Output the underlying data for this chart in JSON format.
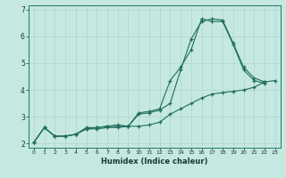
{
  "xlabel": "Humidex (Indice chaleur)",
  "background_color": "#c5e8e0",
  "grid_color": "#b0d5cc",
  "line_color": "#1e6e5e",
  "xlim": [
    -0.5,
    23.5
  ],
  "ylim": [
    1.85,
    7.15
  ],
  "yticks": [
    2,
    3,
    4,
    5,
    6,
    7
  ],
  "xticks": [
    0,
    1,
    2,
    3,
    4,
    5,
    6,
    7,
    8,
    9,
    10,
    11,
    12,
    13,
    14,
    15,
    16,
    17,
    18,
    19,
    20,
    21,
    22,
    23
  ],
  "line1_x": [
    0,
    1,
    2,
    3,
    4,
    5,
    6,
    7,
    8,
    9,
    10,
    11,
    12,
    13,
    14,
    15,
    16,
    17,
    18,
    19,
    20,
    21,
    22
  ],
  "line1_y": [
    2.05,
    2.6,
    2.28,
    2.28,
    2.35,
    2.6,
    2.6,
    2.65,
    2.65,
    2.65,
    3.1,
    3.15,
    3.25,
    3.5,
    4.75,
    5.9,
    6.55,
    6.65,
    6.6,
    5.75,
    4.85,
    4.45,
    4.3
  ],
  "line2_x": [
    0,
    1,
    2,
    3,
    4,
    5,
    6,
    7,
    8,
    9,
    10,
    11,
    12,
    13,
    14,
    15,
    16,
    17,
    18,
    19,
    20,
    21,
    22
  ],
  "line2_y": [
    2.05,
    2.6,
    2.28,
    2.28,
    2.35,
    2.55,
    2.55,
    2.6,
    2.6,
    2.65,
    3.15,
    3.2,
    3.3,
    4.35,
    4.85,
    5.5,
    6.65,
    6.55,
    6.55,
    5.7,
    4.75,
    4.35,
    4.25
  ],
  "line3_x": [
    0,
    1,
    2,
    3,
    4,
    5,
    6,
    7,
    8,
    9,
    10,
    11,
    12,
    13,
    14,
    15,
    16,
    17,
    18,
    19,
    20,
    21,
    22,
    23
  ],
  "line3_y": [
    2.05,
    2.6,
    2.28,
    2.28,
    2.35,
    2.55,
    2.6,
    2.65,
    2.7,
    2.65,
    2.65,
    2.7,
    2.8,
    3.1,
    3.3,
    3.5,
    3.7,
    3.85,
    3.9,
    3.95,
    4.0,
    4.1,
    4.3,
    4.35
  ]
}
